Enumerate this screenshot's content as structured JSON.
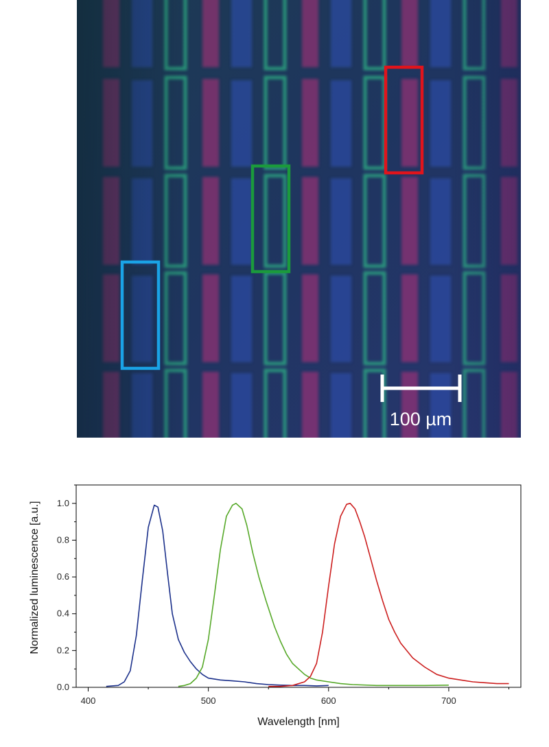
{
  "micrograph": {
    "scale_bar_label": "100 µm",
    "roi_boxes": [
      {
        "name": "red-roi-box",
        "color": "#e0141c"
      },
      {
        "name": "green-roi-box",
        "color": "#1b9a3c"
      },
      {
        "name": "blue-roi-box",
        "color": "#1aa3e6"
      }
    ]
  },
  "chart_data": {
    "type": "line",
    "xlabel": "Wavelength [nm]",
    "ylabel": "Normalized luminescence [a.u.]",
    "xlim": [
      390,
      760
    ],
    "ylim": [
      0,
      1.1
    ],
    "xticks": [
      400,
      500,
      600,
      700
    ],
    "yticks": [
      0.0,
      0.2,
      0.4,
      0.6,
      0.8,
      1.0
    ],
    "ytick_labels": [
      "0.0",
      "0.2",
      "0.4",
      "0.6",
      "0.8",
      "1.0"
    ],
    "grid": false,
    "series": [
      {
        "color": "#1a2f8a",
        "x": [
          415,
          425,
          430,
          435,
          440,
          445,
          450,
          455,
          458,
          462,
          466,
          470,
          475,
          480,
          485,
          490,
          495,
          500,
          510,
          520,
          530,
          540,
          550,
          560,
          570,
          580,
          590,
          600
        ],
        "y": [
          0.005,
          0.01,
          0.03,
          0.09,
          0.28,
          0.58,
          0.87,
          0.99,
          0.98,
          0.85,
          0.62,
          0.4,
          0.26,
          0.19,
          0.14,
          0.1,
          0.07,
          0.05,
          0.04,
          0.035,
          0.03,
          0.02,
          0.015,
          0.012,
          0.01,
          0.01,
          0.008,
          0.01
        ]
      },
      {
        "color": "#55a827",
        "x": [
          475,
          480,
          485,
          490,
          495,
          500,
          505,
          510,
          515,
          520,
          523,
          528,
          532,
          537,
          542,
          548,
          555,
          560,
          565,
          570,
          575,
          580,
          585,
          590,
          600,
          610,
          620,
          640,
          660,
          680,
          700
        ],
        "y": [
          0.005,
          0.01,
          0.02,
          0.05,
          0.11,
          0.26,
          0.5,
          0.75,
          0.93,
          0.99,
          1.0,
          0.97,
          0.88,
          0.73,
          0.6,
          0.47,
          0.33,
          0.25,
          0.18,
          0.13,
          0.1,
          0.07,
          0.05,
          0.04,
          0.03,
          0.02,
          0.015,
          0.01,
          0.01,
          0.01,
          0.012
        ]
      },
      {
        "color": "#cc1d1d",
        "x": [
          550,
          560,
          570,
          580,
          585,
          590,
          595,
          600,
          605,
          610,
          615,
          618,
          622,
          626,
          630,
          635,
          640,
          645,
          650,
          655,
          660,
          670,
          680,
          690,
          700,
          710,
          720,
          730,
          740,
          750
        ],
        "y": [
          0.005,
          0.005,
          0.01,
          0.03,
          0.06,
          0.13,
          0.3,
          0.55,
          0.78,
          0.93,
          0.995,
          1.0,
          0.97,
          0.9,
          0.82,
          0.7,
          0.58,
          0.47,
          0.37,
          0.3,
          0.24,
          0.16,
          0.11,
          0.07,
          0.05,
          0.04,
          0.03,
          0.025,
          0.02,
          0.02
        ]
      }
    ]
  }
}
